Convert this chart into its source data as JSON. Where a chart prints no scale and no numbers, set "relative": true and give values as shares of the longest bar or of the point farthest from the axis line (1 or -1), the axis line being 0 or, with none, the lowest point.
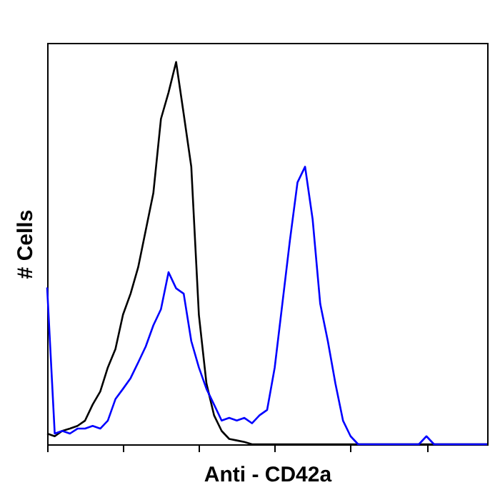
{
  "chart_data": {
    "type": "line",
    "relative": true,
    "xlabel": "Anti - CD42a",
    "ylabel": "# Cells",
    "grid": false,
    "categories": [
      null,
      null,
      null,
      null,
      null,
      null,
      null,
      null,
      null,
      null,
      null,
      null,
      null,
      null,
      null,
      null,
      null,
      null,
      null,
      null,
      null,
      null,
      null,
      null,
      null,
      null,
      null,
      null,
      null,
      null,
      null,
      null,
      null,
      null,
      null,
      null,
      null,
      null,
      null,
      null,
      null,
      null,
      null,
      null,
      null,
      null,
      null,
      null,
      null,
      null,
      null,
      null,
      null,
      null,
      null,
      null,
      null,
      null,
      null
    ],
    "series": [
      {
        "color": "#000000",
        "values": [
          0.028,
          0.021,
          0.035,
          0.041,
          0.048,
          0.062,
          0.104,
          0.138,
          0.201,
          0.249,
          0.339,
          0.394,
          0.463,
          0.56,
          0.657,
          0.851,
          0.92,
          1,
          0.864,
          0.726,
          0.339,
          0.159,
          0.076,
          0.035,
          0.014,
          0.01,
          0.006,
          0,
          0,
          0,
          0,
          0,
          0,
          0,
          0,
          0,
          0,
          0,
          0,
          0,
          0,
          0,
          0,
          0,
          0,
          0,
          0,
          0,
          0,
          0,
          0,
          0,
          0,
          0,
          0,
          0,
          0,
          0,
          0
        ]
      },
      {
        "color": "#0000ff",
        "values": [
          0.41,
          0.028,
          0.035,
          0.028,
          0.041,
          0.041,
          0.048,
          0.041,
          0.062,
          0.118,
          0.145,
          0.173,
          0.214,
          0.256,
          0.311,
          0.353,
          0.45,
          0.408,
          0.394,
          0.27,
          0.201,
          0.145,
          0.104,
          0.062,
          0.069,
          0.062,
          0.069,
          0.055,
          0.076,
          0.09,
          0.201,
          0.367,
          0.533,
          0.685,
          0.726,
          0.588,
          0.367,
          0.27,
          0.159,
          0.062,
          0.021,
          0,
          0,
          0,
          0,
          0,
          0,
          0,
          0,
          0,
          0.021,
          0,
          0,
          0,
          0,
          0,
          0,
          0,
          0
        ]
      }
    ]
  }
}
